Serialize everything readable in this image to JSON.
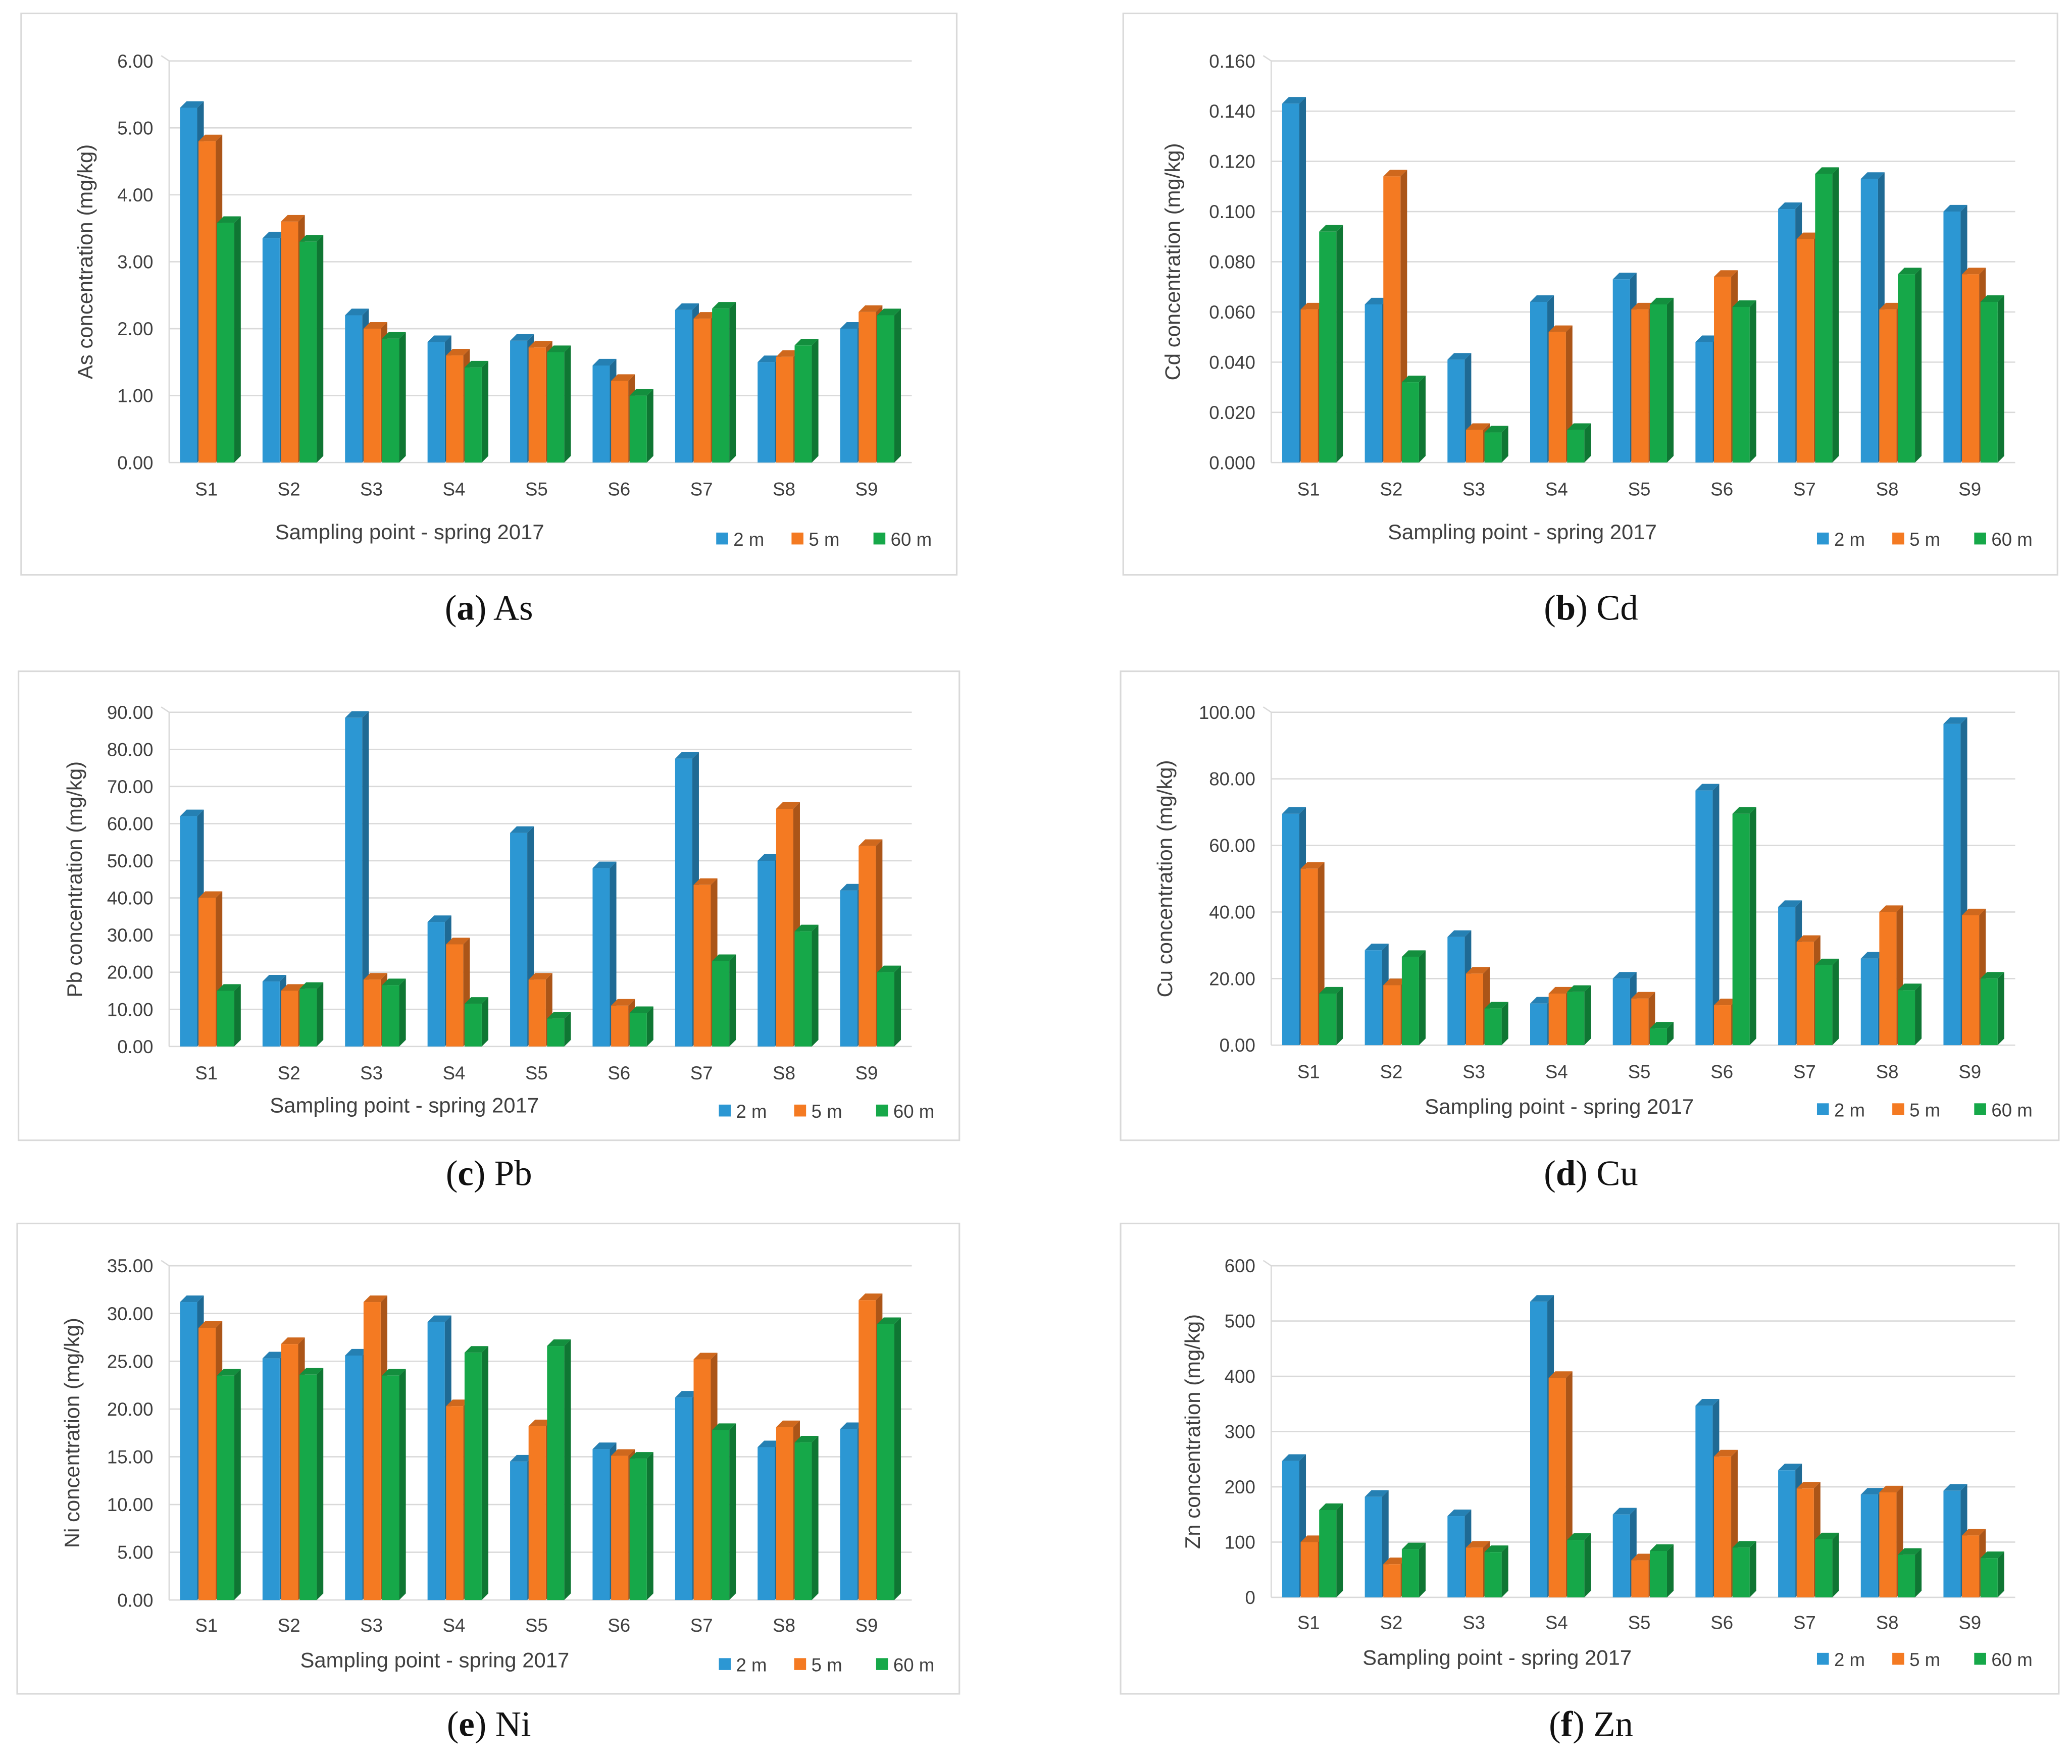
{
  "legend": [
    "2 m",
    "5 m",
    "60 m"
  ],
  "colors": {
    "2m": "#2c97d3",
    "5m": "#f47a22",
    "60m": "#16a849"
  },
  "chart_data": [
    {
      "id": "a",
      "type": "bar",
      "caption": [
        "(",
        "a",
        ") As"
      ],
      "ylabel": "As concentration (mg/kg)",
      "xlabel": "Sampling point - spring 2017",
      "categories": [
        "S1",
        "S2",
        "S3",
        "S4",
        "S5",
        "S6",
        "S7",
        "S8",
        "S9"
      ],
      "yticks": [
        "0.00",
        "1.00",
        "2.00",
        "3.00",
        "4.00",
        "5.00",
        "6.00"
      ],
      "ylim": [
        0,
        6
      ],
      "series": [
        {
          "name": "2 m",
          "values": [
            5.3,
            3.35,
            2.2,
            1.8,
            1.82,
            1.45,
            2.28,
            1.5,
            2.0
          ]
        },
        {
          "name": "5 m",
          "values": [
            4.8,
            3.6,
            2.0,
            1.6,
            1.72,
            1.22,
            2.15,
            1.58,
            2.25
          ]
        },
        {
          "name": "60 m",
          "values": [
            3.58,
            3.3,
            1.85,
            1.42,
            1.65,
            1.0,
            2.3,
            1.75,
            2.2
          ]
        }
      ]
    },
    {
      "id": "b",
      "type": "bar",
      "caption": [
        "(",
        "b",
        ") Cd"
      ],
      "ylabel": "Cd concentration (mg/kg)",
      "xlabel": "Sampling point - spring 2017",
      "categories": [
        "S1",
        "S2",
        "S3",
        "S4",
        "S5",
        "S6",
        "S7",
        "S8",
        "S9"
      ],
      "yticks": [
        "0.000",
        "0.020",
        "0.040",
        "0.060",
        "0.080",
        "0.100",
        "0.120",
        "0.140",
        "0.160"
      ],
      "ylim": [
        0,
        0.16
      ],
      "series": [
        {
          "name": "2 m",
          "values": [
            0.143,
            0.063,
            0.041,
            0.064,
            0.073,
            0.048,
            0.101,
            0.113,
            0.1
          ]
        },
        {
          "name": "5 m",
          "values": [
            0.061,
            0.114,
            0.013,
            0.052,
            0.061,
            0.074,
            0.089,
            0.061,
            0.075
          ]
        },
        {
          "name": "60 m",
          "values": [
            0.092,
            0.032,
            0.012,
            0.013,
            0.063,
            0.062,
            0.115,
            0.075,
            0.064
          ]
        }
      ]
    },
    {
      "id": "c",
      "type": "bar",
      "caption": [
        "(",
        "c",
        ") Pb"
      ],
      "ylabel": "Pb concentration (mg/kg)",
      "xlabel": "Sampling point - spring 2017",
      "categories": [
        "S1",
        "S2",
        "S3",
        "S4",
        "S5",
        "S6",
        "S7",
        "S8",
        "S9"
      ],
      "yticks": [
        "0.00",
        "10.00",
        "20.00",
        "30.00",
        "40.00",
        "50.00",
        "60.00",
        "70.00",
        "80.00",
        "90.00"
      ],
      "ylim": [
        0,
        90
      ],
      "series": [
        {
          "name": "2 m",
          "values": [
            62,
            17.5,
            88.5,
            33.5,
            57.5,
            48,
            77.5,
            50,
            42
          ]
        },
        {
          "name": "5 m",
          "values": [
            40,
            15,
            18,
            27.5,
            18,
            11,
            43.5,
            64,
            54
          ]
        },
        {
          "name": "60 m",
          "values": [
            15,
            15.5,
            16.5,
            11.5,
            7.5,
            9,
            23,
            31,
            20
          ]
        }
      ]
    },
    {
      "id": "d",
      "type": "bar",
      "caption": [
        "(",
        "d",
        ") Cu"
      ],
      "ylabel": "Cu concentration (mg/kg)",
      "xlabel": "Sampling point - spring 2017",
      "categories": [
        "S1",
        "S2",
        "S3",
        "S4",
        "S5",
        "S6",
        "S7",
        "S8",
        "S9"
      ],
      "yticks": [
        "0.00",
        "20.00",
        "40.00",
        "60.00",
        "80.00",
        "100.00"
      ],
      "ylim": [
        0,
        100
      ],
      "series": [
        {
          "name": "2 m",
          "values": [
            69.5,
            28.5,
            32.5,
            12.5,
            20,
            76.5,
            41.5,
            26,
            96.5
          ]
        },
        {
          "name": "5 m",
          "values": [
            53,
            18,
            21.5,
            15.5,
            14,
            12,
            31,
            40,
            39
          ]
        },
        {
          "name": "60 m",
          "values": [
            15.5,
            26.5,
            11,
            16,
            5,
            69.5,
            24,
            16.5,
            20
          ]
        }
      ]
    },
    {
      "id": "e",
      "type": "bar",
      "caption": [
        "(",
        "e",
        ") Ni"
      ],
      "ylabel": "Ni concentration (mg/kg)",
      "xlabel": "Sampling point - spring 2017",
      "categories": [
        "S1",
        "S2",
        "S3",
        "S4",
        "S5",
        "S6",
        "S7",
        "S8",
        "S9"
      ],
      "yticks": [
        "0.00",
        "5.00",
        "10.00",
        "15.00",
        "20.00",
        "25.00",
        "30.00",
        "35.00"
      ],
      "ylim": [
        0,
        35
      ],
      "series": [
        {
          "name": "2 m",
          "values": [
            31.2,
            25.3,
            25.6,
            29.1,
            14.5,
            15.8,
            21.2,
            16,
            17.9
          ]
        },
        {
          "name": "5 m",
          "values": [
            28.5,
            26.8,
            31.2,
            20.3,
            18.2,
            15.1,
            25.2,
            18.1,
            31.4
          ]
        },
        {
          "name": "60 m",
          "values": [
            23.5,
            23.6,
            23.5,
            25.9,
            26.6,
            14.8,
            17.8,
            16.5,
            28.9
          ]
        }
      ]
    },
    {
      "id": "f",
      "type": "bar",
      "caption": [
        "(",
        "f",
        ") Zn"
      ],
      "ylabel": "Zn concentration (mg/kg)",
      "xlabel": "Sampling point - spring 2017",
      "categories": [
        "S1",
        "S2",
        "S3",
        "S4",
        "S5",
        "S6",
        "S7",
        "S8",
        "S9"
      ],
      "yticks": [
        "0",
        "100",
        "200",
        "300",
        "400",
        "500",
        "600"
      ],
      "ylim": [
        0,
        600
      ],
      "series": [
        {
          "name": "2 m",
          "values": [
            247,
            182,
            147,
            535,
            150,
            347,
            230,
            186,
            193
          ]
        },
        {
          "name": "5 m",
          "values": [
            100,
            60,
            90,
            397,
            67,
            255,
            197,
            190,
            112
          ]
        },
        {
          "name": "60 m",
          "values": [
            158,
            87,
            82,
            104,
            84,
            90,
            105,
            77,
            71
          ]
        }
      ]
    }
  ]
}
